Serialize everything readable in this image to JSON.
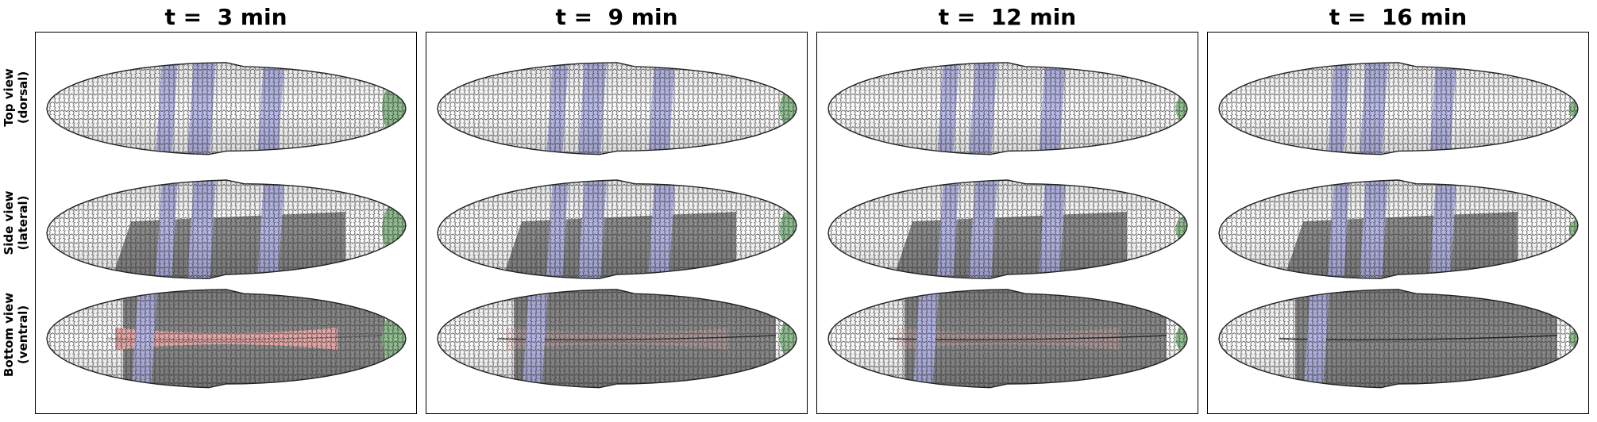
{
  "panels": [
    {
      "title": "t =  3 min",
      "furrow_extent": 1.0,
      "pole_extent": 1.0,
      "pink_extent": 1.0,
      "stage": 0
    },
    {
      "title": "t =  9 min",
      "furrow_extent": 0.55,
      "pole_extent": 0.6,
      "pink_extent": 0.25,
      "stage": 1
    },
    {
      "title": "t =  12 min",
      "furrow_extent": 0.35,
      "pole_extent": 0.3,
      "pink_extent": 0.15,
      "stage": 2
    },
    {
      "title": "t =  16 min",
      "furrow_extent": 0.2,
      "pole_extent": 0.15,
      "pink_extent": 0.0,
      "stage": 3
    }
  ],
  "row_labels": [
    {
      "line1": "Top view",
      "line2": "(dorsal)"
    },
    {
      "line1": "Side view",
      "line2": "(lateral)"
    },
    {
      "line1": "Bottom view",
      "line2": "(ventral)"
    }
  ],
  "colors": {
    "cell_white": "#ffffff",
    "cell_gray": "#8c8c8c",
    "stripe_blue": "#b7b8ec",
    "pole_green": "#8fbf8f",
    "furrow_pink": "#e8a9a9",
    "mesh_edge": "#333333"
  }
}
